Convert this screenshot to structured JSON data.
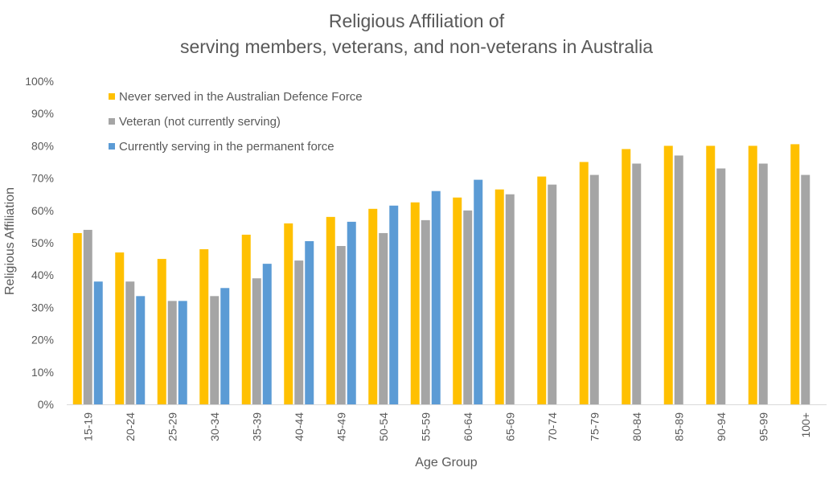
{
  "chart_data": {
    "type": "bar",
    "title_line1": "Religious Affiliation of",
    "title_line2": "serving members, veterans, and non-veterans in Australia",
    "xlabel": "Age Group",
    "ylabel": "Religious Affiliation",
    "ylim": [
      0,
      100
    ],
    "yticks": [
      "0%",
      "10%",
      "20%",
      "30%",
      "40%",
      "50%",
      "60%",
      "70%",
      "80%",
      "90%",
      "100%"
    ],
    "grid": false,
    "legend_position": "top-left",
    "categories": [
      "15-19",
      "20-24",
      "25-29",
      "30-34",
      "35-39",
      "40-44",
      "45-49",
      "50-54",
      "55-59",
      "60-64",
      "65-69",
      "70-74",
      "75-79",
      "80-84",
      "85-89",
      "90-94",
      "95-99",
      "100+"
    ],
    "series": [
      {
        "name": "Never served in the Australian Defence Force",
        "color": "#FFC000",
        "values": [
          53,
          47,
          45,
          48,
          52.5,
          56,
          58,
          60.5,
          62.5,
          64,
          66.5,
          70.5,
          75,
          79,
          80,
          80,
          80,
          80.5
        ]
      },
      {
        "name": "Veteran (not currently serving)",
        "color": "#A5A5A5",
        "values": [
          54,
          38,
          32,
          33.5,
          39,
          44.5,
          49,
          53,
          57,
          60,
          65,
          68,
          71,
          74.5,
          77,
          73,
          74.5,
          71
        ]
      },
      {
        "name": "Currently serving in the permanent force",
        "color": "#5B9BD5",
        "values": [
          38,
          33.5,
          32,
          36,
          43.5,
          50.5,
          56.5,
          61.5,
          66,
          69.5,
          null,
          null,
          null,
          null,
          null,
          null,
          null,
          null
        ]
      }
    ]
  }
}
